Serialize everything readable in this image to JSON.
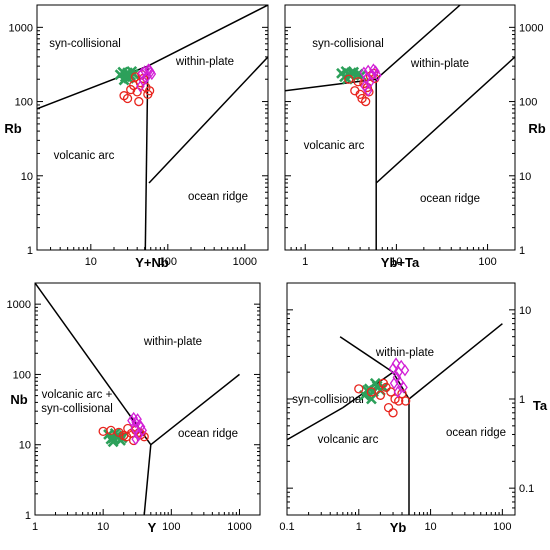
{
  "chart_data": [
    {
      "type": "scatter",
      "xlabel": "Y+Nb",
      "ylabel": "Rb",
      "xscale": "log",
      "yscale": "log",
      "xlim": [
        2,
        2000
      ],
      "ylim": [
        1,
        2000
      ],
      "x_ticks": [
        "10",
        "100",
        "1000"
      ],
      "y_ticks": [
        "1",
        "10",
        "100",
        "1000"
      ],
      "fields": [
        "syn-collisional",
        "within-plate",
        "volcanic arc",
        "ocean ridge"
      ],
      "boundaries": [
        [
          [
            2,
            80
          ],
          [
            55,
            300
          ]
        ],
        [
          [
            55,
            300
          ],
          [
            51,
            1
          ]
        ],
        [
          [
            55,
            300
          ],
          [
            2000,
            2000
          ]
        ],
        [
          [
            57,
            8
          ],
          [
            2000,
            400
          ]
        ]
      ],
      "series": [
        {
          "marker": "x",
          "color": "#2ca05a",
          "points": [
            [
              24,
              230
            ],
            [
              26,
              250
            ],
            [
              28,
              215
            ],
            [
              30,
              245
            ],
            [
              33,
              225
            ],
            [
              36,
              235
            ],
            [
              27,
              195
            ],
            [
              31,
              205
            ],
            [
              34,
              255
            ],
            [
              29,
              230
            ]
          ]
        },
        {
          "marker": "o",
          "color": "#e8251e",
          "points": [
            [
              27,
              120
            ],
            [
              30,
              110
            ],
            [
              33,
              145
            ],
            [
              36,
              165
            ],
            [
              40,
              135
            ],
            [
              44,
              180
            ],
            [
              48,
              205
            ],
            [
              52,
              155
            ],
            [
              55,
              125
            ],
            [
              38,
              215
            ],
            [
              46,
              230
            ],
            [
              58,
              140
            ],
            [
              42,
              100
            ]
          ]
        },
        {
          "marker": "diamond",
          "color": "#d21fd6",
          "points": [
            [
              46,
              240
            ],
            [
              50,
              255
            ],
            [
              54,
              220
            ],
            [
              58,
              265
            ],
            [
              62,
              235
            ],
            [
              48,
              190
            ],
            [
              56,
              270
            ],
            [
              52,
              205
            ],
            [
              44,
              160
            ],
            [
              60,
              250
            ]
          ]
        }
      ]
    },
    {
      "type": "scatter",
      "xlabel": "Yb+Ta",
      "ylabel": "Rb",
      "xscale": "log",
      "yscale": "log",
      "xlim": [
        0.6,
        200
      ],
      "ylim": [
        1,
        2000
      ],
      "x_ticks": [
        "1",
        "10",
        "100"
      ],
      "y_ticks": [
        "1",
        "10",
        "100",
        "1000"
      ],
      "fields": [
        "syn-collisional",
        "within-plate",
        "volcanic arc",
        "ocean ridge"
      ],
      "boundaries": [
        [
          [
            0.6,
            140
          ],
          [
            6,
            200
          ]
        ],
        [
          [
            6,
            200
          ],
          [
            6,
            1
          ]
        ],
        [
          [
            6,
            200
          ],
          [
            50,
            2000
          ]
        ],
        [
          [
            6,
            8
          ],
          [
            200,
            400
          ]
        ]
      ],
      "series": [
        {
          "marker": "x",
          "color": "#2ca05a",
          "points": [
            [
              2.5,
              240
            ],
            [
              2.8,
              255
            ],
            [
              3.1,
              225
            ],
            [
              3.4,
              250
            ],
            [
              2.7,
              215
            ],
            [
              3.8,
              235
            ],
            [
              3.2,
              245
            ],
            [
              4.1,
              225
            ],
            [
              2.9,
              200
            ]
          ]
        },
        {
          "marker": "o",
          "color": "#e8251e",
          "points": [
            [
              3.0,
              200
            ],
            [
              3.5,
              140
            ],
            [
              4.0,
              125
            ],
            [
              4.4,
              175
            ],
            [
              4.8,
              155
            ],
            [
              5.2,
              220
            ],
            [
              5.6,
              240
            ],
            [
              4.2,
              110
            ],
            [
              3.8,
              185
            ],
            [
              5.0,
              135
            ],
            [
              5.8,
              205
            ],
            [
              4.6,
              100
            ]
          ]
        },
        {
          "marker": "diamond",
          "color": "#d21fd6",
          "points": [
            [
              4.4,
              245
            ],
            [
              4.9,
              260
            ],
            [
              5.4,
              230
            ],
            [
              5.9,
              255
            ],
            [
              4.7,
              205
            ],
            [
              5.2,
              185
            ],
            [
              6.2,
              225
            ],
            [
              4.5,
              160
            ],
            [
              5.6,
              270
            ],
            [
              4.9,
              140
            ]
          ]
        }
      ]
    },
    {
      "type": "scatter",
      "xlabel": "Y",
      "ylabel": "Nb",
      "xscale": "log",
      "yscale": "log",
      "xlim": [
        1,
        2000
      ],
      "ylim": [
        1,
        2000
      ],
      "x_ticks": [
        "1",
        "10",
        "100",
        "1000"
      ],
      "y_ticks": [
        "1",
        "10",
        "100",
        "1000"
      ],
      "fields": [
        "within-plate",
        "volcanic arc +\nsyn-collisional",
        "ocean ridge"
      ],
      "boundaries": [
        [
          [
            1,
            2000
          ],
          [
            50,
            10
          ]
        ],
        [
          [
            50,
            10
          ],
          [
            40,
            1
          ]
        ],
        [
          [
            50,
            10
          ],
          [
            1000,
            100
          ]
        ]
      ],
      "series": [
        {
          "marker": "x",
          "color": "#2ca05a",
          "points": [
            [
              12,
              14
            ],
            [
              14,
              12.5
            ],
            [
              16,
              13.5
            ],
            [
              18,
              11.5
            ],
            [
              13,
              12
            ],
            [
              15,
              14.5
            ],
            [
              17,
              13
            ],
            [
              19,
              12.5
            ],
            [
              14,
              11
            ]
          ]
        },
        {
          "marker": "o",
          "color": "#e8251e",
          "points": [
            [
              10,
              15.5
            ],
            [
              13,
              16
            ],
            [
              17,
              15
            ],
            [
              20,
              13.5
            ],
            [
              23,
              17
            ],
            [
              26,
              14.5
            ],
            [
              30,
              16
            ],
            [
              34,
              15
            ],
            [
              28,
              11.5
            ],
            [
              22,
              13
            ],
            [
              36,
              14
            ],
            [
              40,
              13
            ]
          ]
        },
        {
          "marker": "diamond",
          "color": "#d21fd6",
          "points": [
            [
              26,
              22
            ],
            [
              28,
              24
            ],
            [
              30,
              21
            ],
            [
              32,
              23
            ],
            [
              34,
              19
            ],
            [
              29,
              17
            ],
            [
              36,
              18
            ],
            [
              30,
              12
            ],
            [
              33,
              13.5
            ],
            [
              38,
              16
            ]
          ]
        }
      ]
    },
    {
      "type": "scatter",
      "xlabel": "Yb",
      "ylabel": "Ta",
      "xscale": "log",
      "yscale": "log",
      "xlim": [
        0.1,
        150
      ],
      "ylim": [
        0.05,
        20
      ],
      "x_ticks": [
        "0.1",
        "1",
        "10",
        "100"
      ],
      "y_ticks": [
        "0.1",
        "1",
        "10"
      ],
      "fields": [
        "within-plate",
        "syn-collisional",
        "volcanic arc",
        "ocean ridge"
      ],
      "boundaries": [
        [
          [
            0.55,
            5
          ],
          [
            3,
            2
          ]
        ],
        [
          [
            0.1,
            0.35
          ],
          [
            0.6,
            0.8
          ]
        ],
        [
          [
            0.6,
            0.8
          ],
          [
            3,
            2
          ]
        ],
        [
          [
            3,
            2
          ],
          [
            5,
            1
          ]
        ],
        [
          [
            5,
            1
          ],
          [
            5,
            0.05
          ]
        ],
        [
          [
            5,
            1
          ],
          [
            100,
            7
          ]
        ]
      ],
      "series": [
        {
          "marker": "x",
          "color": "#2ca05a",
          "points": [
            [
              1.2,
              1.1
            ],
            [
              1.4,
              1.3
            ],
            [
              1.6,
              1.2
            ],
            [
              1.8,
              1.4
            ],
            [
              2.0,
              1.25
            ],
            [
              1.5,
              1.0
            ],
            [
              2.2,
              1.35
            ],
            [
              1.7,
              1.5
            ],
            [
              1.3,
              1.25
            ]
          ]
        },
        {
          "marker": "o",
          "color": "#e8251e",
          "points": [
            [
              1.0,
              1.3
            ],
            [
              1.5,
              1.2
            ],
            [
              2.0,
              1.1
            ],
            [
              2.4,
              1.35
            ],
            [
              2.8,
              1.2
            ],
            [
              3.2,
              1.0
            ],
            [
              3.6,
              0.95
            ],
            [
              4.0,
              1.15
            ],
            [
              4.5,
              0.95
            ],
            [
              2.6,
              0.8
            ],
            [
              3.0,
              0.7
            ],
            [
              2.2,
              1.5
            ]
          ]
        },
        {
          "marker": "diamond",
          "color": "#d21fd6",
          "points": [
            [
              3.0,
              2.2
            ],
            [
              3.3,
              2.5
            ],
            [
              3.6,
              2.0
            ],
            [
              3.9,
              2.35
            ],
            [
              3.4,
              1.75
            ],
            [
              3.7,
              1.55
            ],
            [
              4.2,
              1.35
            ],
            [
              3.1,
              1.5
            ],
            [
              4.4,
              2.1
            ],
            [
              3.5,
              1.2
            ]
          ]
        }
      ]
    }
  ]
}
